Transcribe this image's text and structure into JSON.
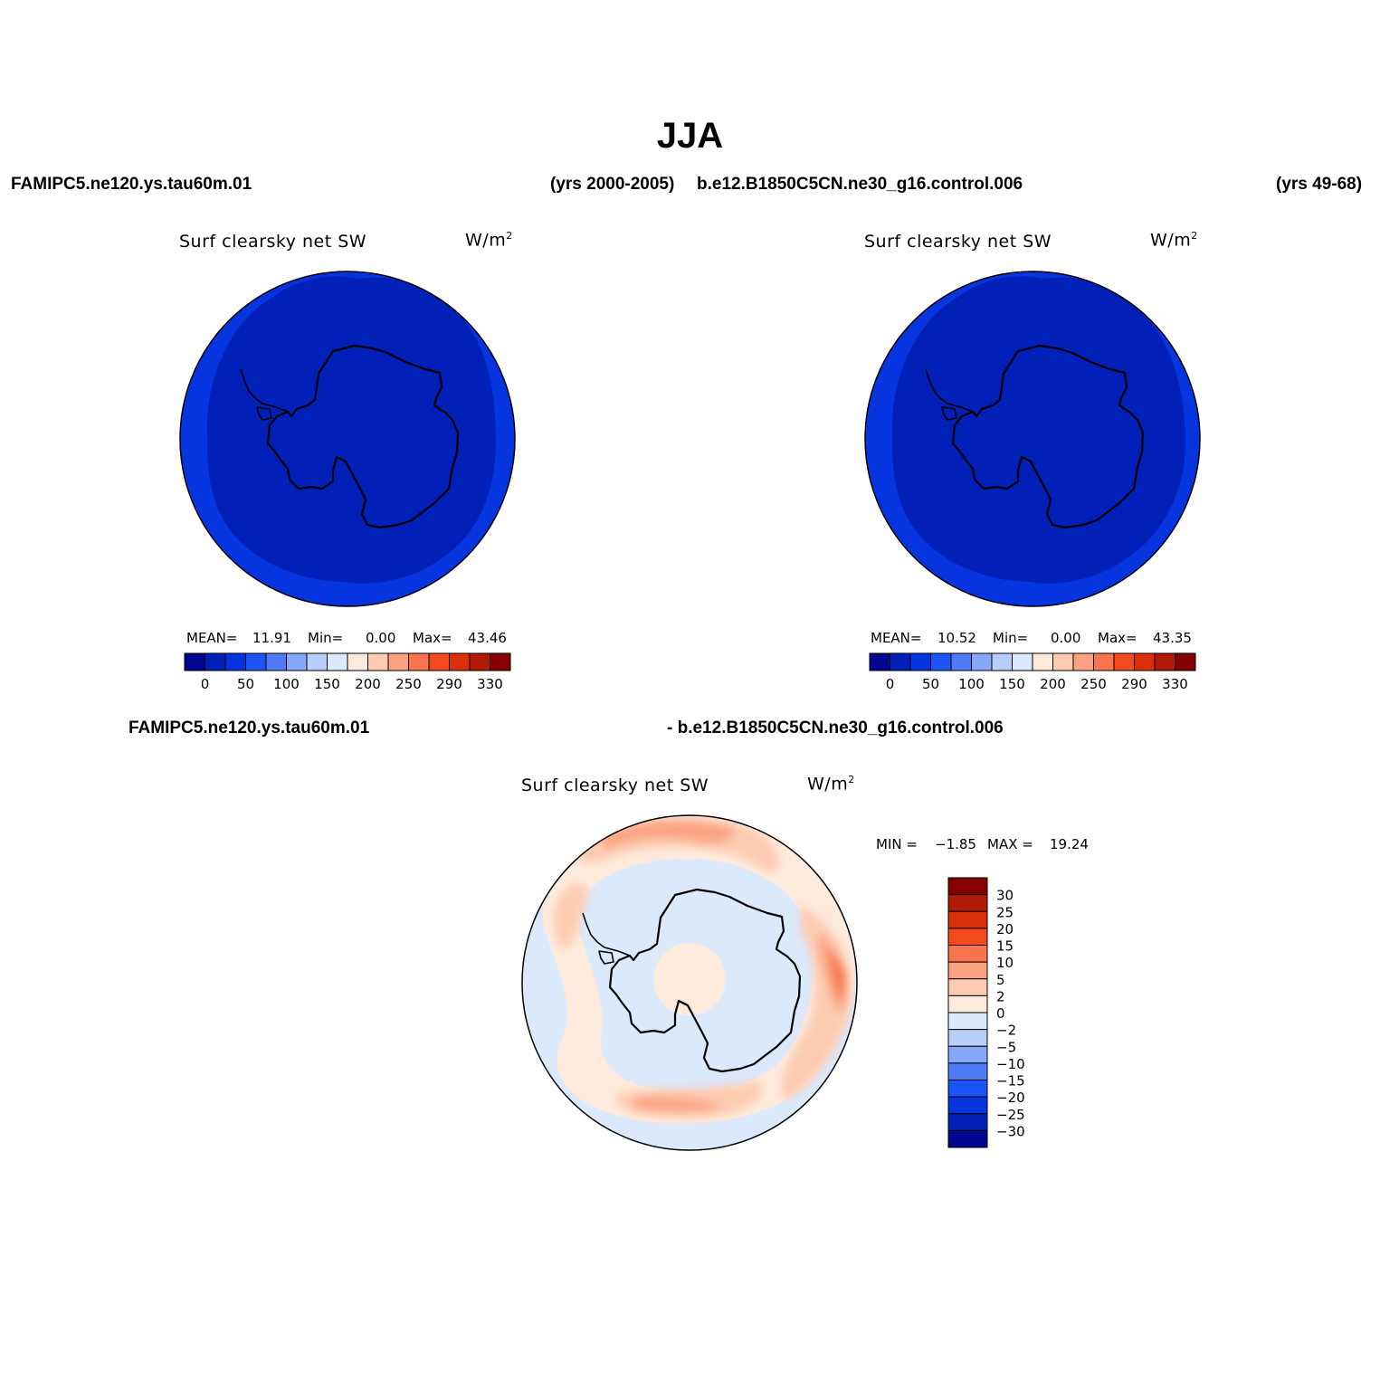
{
  "title": "JJA",
  "cases": {
    "left_name": "FAMIPC5.ne120.ys.tau60m.01",
    "left_years": "(yrs 2000-2005)",
    "right_name": "b.e12.B1850C5CN.ne30_g16.control.006",
    "right_years": "(yrs 49-68)",
    "diff_left": "FAMIPC5.ne120.ys.tau60m.01",
    "diff_right": "- b.e12.B1850C5CN.ne30_g16.control.006"
  },
  "panels": [
    {
      "variable": "Surf clearsky net SW",
      "units_base": "W/m",
      "units_exp": "2",
      "stats": {
        "mean_label": "MEAN=",
        "mean": "11.91",
        "min_label": "Min=",
        "min": "0.00",
        "max_label": "Max=",
        "max": "43.46"
      }
    },
    {
      "variable": "Surf clearsky net SW",
      "units_base": "W/m",
      "units_exp": "2",
      "stats": {
        "mean_label": "MEAN=",
        "mean": "10.52",
        "min_label": "Min=",
        "min": "0.00",
        "max_label": "Max=",
        "max": "43.35"
      }
    }
  ],
  "diff_panel": {
    "variable": "Surf clearsky net SW",
    "units_base": "W/m",
    "units_exp": "2",
    "stats": {
      "min_label": "MIN =",
      "min": "−1.85",
      "max_label": "MAX =",
      "max": "19.24"
    }
  },
  "colorbar_main": {
    "colors": [
      "#02068f",
      "#0020b8",
      "#0635e0",
      "#1c54f5",
      "#4f7bf9",
      "#86a7fa",
      "#b8cffb",
      "#dbe9fc",
      "#feeadb",
      "#fdcbb2",
      "#fba381",
      "#f87550",
      "#f4481f",
      "#d9300b",
      "#b01a06",
      "#850000"
    ],
    "tick_labels": [
      "0",
      "50",
      "100",
      "150",
      "200",
      "250",
      "290",
      "330"
    ]
  },
  "colorbar_diff": {
    "colors_top_to_bottom": [
      "#850000",
      "#b01a06",
      "#d9300b",
      "#f4481f",
      "#f87550",
      "#fba381",
      "#fdcbb2",
      "#feeadb",
      "#dbe9fc",
      "#b8cffb",
      "#86a7fa",
      "#4f7bf9",
      "#1c54f5",
      "#0635e0",
      "#0020b8",
      "#02068f"
    ],
    "tick_labels": [
      "30",
      "25",
      "20",
      "15",
      "10",
      "5",
      "2",
      "0",
      "−2",
      "−5",
      "−10",
      "−15",
      "−20",
      "−25",
      "−30"
    ]
  },
  "map_colors": {
    "ocean_outer": "#0635e0",
    "inner_field": "#0020b8",
    "coast": "#000000",
    "diff_base": "#dbe9fc",
    "diff_pos_light": "#feeadb",
    "diff_pos_mid": "#fdcbb2",
    "diff_pos_high": "#fba381",
    "diff_pos_max": "#f87550"
  }
}
